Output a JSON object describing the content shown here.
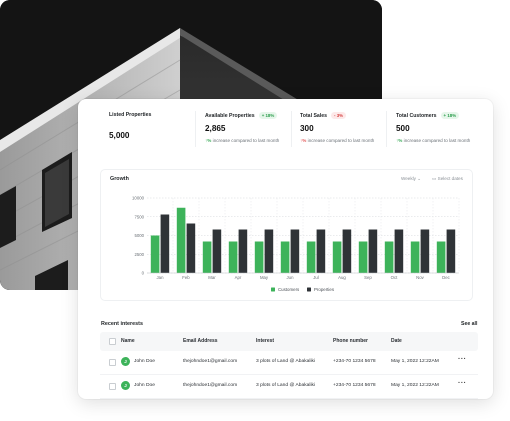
{
  "stats": [
    {
      "label": "Listed Properties",
      "value": "5,000",
      "badge": "",
      "change": ""
    },
    {
      "label": "Available Properties",
      "value": "2,865",
      "badge": "+ 18%",
      "trend": "up",
      "change_arrow": "↑%",
      "change": "increase compared to last month"
    },
    {
      "label": "Total Sales",
      "value": "300",
      "badge": "- 3%",
      "trend": "down",
      "change_arrow": "↑%",
      "change": "increase compared to last month"
    },
    {
      "label": "Total Customers",
      "value": "500",
      "badge": "+ 18%",
      "trend": "up",
      "change_arrow": "↑%",
      "change": "increase compared to last month"
    }
  ],
  "chart_panel": {
    "title": "Growth",
    "period_select": "Weekly ⌄",
    "date_select": "Select dates"
  },
  "chart_data": {
    "type": "bar",
    "categories": [
      "Jan",
      "Feb",
      "Mar",
      "Apr",
      "May",
      "Jun",
      "Jul",
      "Aug",
      "Sep",
      "Oct",
      "Nov",
      "Dec"
    ],
    "series": [
      {
        "name": "Customers",
        "color": "#3db35a",
        "values": [
          5000,
          8700,
          4200,
          4200,
          4200,
          4200,
          4200,
          4200,
          4200,
          4200,
          4200,
          4200
        ]
      },
      {
        "name": "Properties",
        "color": "#2f3337",
        "values": [
          7800,
          6600,
          5800,
          5800,
          5800,
          5800,
          5800,
          5800,
          5800,
          5800,
          5800,
          5800
        ]
      }
    ],
    "yticks": [
      "0",
      "2500",
      "5000",
      "7500",
      "10000"
    ],
    "ylim": [
      0,
      10000
    ],
    "legend_position": "bottom-center",
    "grid": true
  },
  "recent": {
    "title": "Recent interests",
    "see_all": "See all",
    "columns": [
      "Name",
      "Email Address",
      "Interest",
      "Phone number",
      "Date"
    ],
    "rows": [
      {
        "initial": "J",
        "name": "John Doe",
        "email": "thejohndoe1@gmail.com",
        "interest": "3 plots of Land @ Abakaliki",
        "phone": "+234-70 1234 5678",
        "date": "May 1, 2022 12:22AM",
        "more": "···"
      },
      {
        "initial": "J",
        "name": "John Doe",
        "email": "thejohndoe1@gmail.com",
        "interest": "3 plots of Land @ Abakaliki",
        "phone": "+234-70 1234 5678",
        "date": "May 1, 2022 12:22AM",
        "more": "···"
      }
    ]
  },
  "colors": {
    "accent": "#3db35a",
    "dark_bar": "#2f3337",
    "photo_bg": "#151515"
  }
}
